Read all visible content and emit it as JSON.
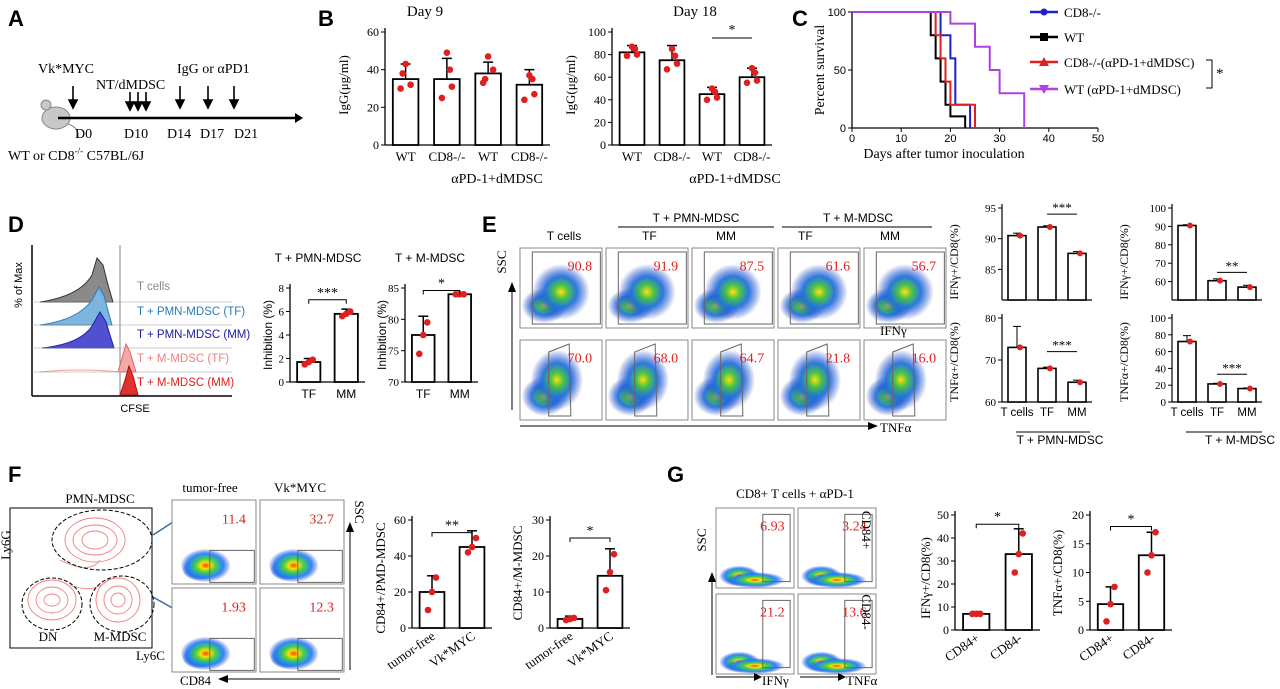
{
  "panels": {
    "A": {
      "label": "A",
      "timeline": [
        "Vk*MYC",
        "NT/dMDSC",
        "IgG or αPD1",
        "D0",
        "D10",
        "D14",
        "D17",
        "D21"
      ],
      "mouse_caption": "WT or CD8",
      "mouse_caption_sup": "-/-",
      "mouse_caption_tail": " C57BL/6J"
    },
    "B": {
      "label": "B",
      "day9": "Day 9",
      "day18": "Day 18",
      "ylabel": "IgG(μg/ml)",
      "group_label": "αPD-1+dMDSC",
      "star": "*"
    },
    "C": {
      "label": "C",
      "ylabel": "Percent survival",
      "xlabel": "Days after tumor inoculation",
      "legend": [
        "CD8-/-",
        "WT",
        "CD8-/-(αPD-1+dMDSC)",
        "WT (αPD-1+dMDSC)"
      ],
      "star": "*"
    },
    "D": {
      "label": "D",
      "ylabel": "% of Max",
      "xlabel": "CFSE",
      "histo_labels": [
        "T cells",
        "T + PMN-MDSC (TF)",
        "T + PMN-MDSC (MM)",
        "T + M-MDSC (TF)",
        "T + M-MDSC (MM)"
      ],
      "bar1_title": "T + PMN-MDSC",
      "bar2_title": "T + M-MDSC",
      "bar_ylabel": "Inhibition (%)",
      "stars1": "***",
      "stars2": "*"
    },
    "E": {
      "label": "E",
      "col_heads": [
        "T cells",
        "T + PMN-MDSC",
        "T + M-MDSC",
        "TF",
        "MM",
        "TF",
        "MM"
      ],
      "row1_values": [
        "90.8",
        "91.9",
        "87.5",
        "61.6",
        "56.7"
      ],
      "row2_values": [
        "70.0",
        "68.0",
        "64.7",
        "21.8",
        "16.0"
      ],
      "ssc": "SSC",
      "ifng": "IFNγ",
      "tnfa": "TNFα",
      "bar_ylabel_ifn": "IFNγ+/CD8(%)",
      "bar_ylabel_tnf": "TNFα+/CD8(%)",
      "xcats": [
        "T cells",
        "TF",
        "MM"
      ],
      "group_pmn": "T + PMN-MDSC",
      "group_m": "T + M-MDSC"
    },
    "F": {
      "label": "F",
      "gates": [
        "PMN-MDSC",
        "DN",
        "M-MDSC"
      ],
      "axes": [
        "Ly6G",
        "Ly6C",
        "SSC",
        "CD84"
      ],
      "col_heads": [
        "tumor-free",
        "Vk*MYC"
      ],
      "values": [
        "11.4",
        "32.7",
        "1.93",
        "12.3"
      ],
      "bar1_ylabel": "CD84+/PMD-MDSC",
      "bar2_ylabel": "CD84+/M-MDSC",
      "xcats": [
        "tumor-free",
        "Vk*MYC"
      ],
      "stars1": "**",
      "stars2": "*"
    },
    "G": {
      "label": "G",
      "title": "CD8+ T cells + αPD-1",
      "values": [
        "6.93",
        "3.24",
        "21.2",
        "13.6"
      ],
      "row_labels": [
        "CD84+",
        "CD84-"
      ],
      "axes": [
        "SSC",
        "IFNγ",
        "TNFα"
      ],
      "bar1_ylabel": "IFNγ+/CD8(%)",
      "bar2_ylabel": "TNFα+/CD8(%)",
      "xcats": [
        "CD84+",
        "CD84-"
      ],
      "stars": "*"
    }
  },
  "chart_data": [
    {
      "id": "B-day9",
      "type": "bar",
      "title": "Day 9",
      "categories": [
        "WT",
        "CD8-/-",
        "WT",
        "CD8-/-"
      ],
      "values": [
        35,
        35,
        38,
        32
      ],
      "ylim": [
        0,
        60
      ],
      "ylabel": "IgG(μg/ml)"
    },
    {
      "id": "B-day18",
      "type": "bar",
      "title": "Day 18",
      "categories": [
        "WT",
        "CD8-/-",
        "WT",
        "CD8-/-"
      ],
      "values": [
        82,
        75,
        45,
        60
      ],
      "ylim": [
        0,
        100
      ],
      "ylabel": "IgG(μg/ml)"
    },
    {
      "id": "C-survival",
      "type": "line",
      "xlabel": "Days after tumor inoculation",
      "ylabel": "Percent survival",
      "xlim": [
        0,
        50
      ],
      "ylim": [
        0,
        100
      ]
    },
    {
      "id": "D-pmn",
      "type": "bar",
      "title": "T + PMN-MDSC",
      "categories": [
        "TF",
        "MM"
      ],
      "values": [
        1.7,
        5.8
      ],
      "ylim": [
        0,
        8
      ]
    },
    {
      "id": "D-m",
      "type": "bar",
      "title": "T + M-MDSC",
      "categories": [
        "TF",
        "MM"
      ],
      "values": [
        77.5,
        84
      ],
      "ylim": [
        70,
        85
      ]
    },
    {
      "id": "F-pmn",
      "type": "bar",
      "categories": [
        "tumor-free",
        "Vk*MYC"
      ],
      "values": [
        20,
        45
      ],
      "ylim": [
        0,
        60
      ]
    },
    {
      "id": "F-m",
      "type": "bar",
      "categories": [
        "tumor-free",
        "Vk*MYC"
      ],
      "values": [
        2.5,
        14.5
      ],
      "ylim": [
        0,
        30
      ]
    },
    {
      "id": "G-ifn",
      "type": "bar",
      "categories": [
        "CD84+",
        "CD84-"
      ],
      "values": [
        7,
        33
      ],
      "ylim": [
        0,
        50
      ]
    },
    {
      "id": "G-tnf",
      "type": "bar",
      "categories": [
        "CD84+",
        "CD84-"
      ],
      "values": [
        4.5,
        13
      ],
      "ylim": [
        0,
        20
      ]
    }
  ]
}
